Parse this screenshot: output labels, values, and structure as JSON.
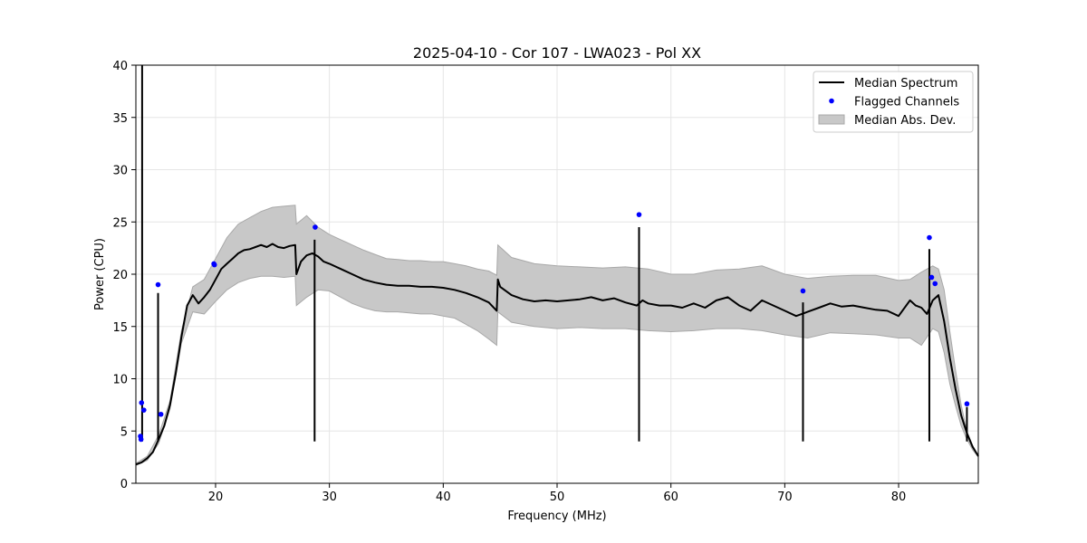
{
  "chart_data": {
    "type": "line",
    "title": "2025-04-10 - Cor 107 - LWA023 - Pol XX",
    "xlabel": "Frequency (MHz)",
    "ylabel": "Power (CPU)",
    "xlim": [
      13.0,
      87.0
    ],
    "ylim": [
      0,
      40
    ],
    "xticks": [
      20,
      30,
      40,
      50,
      60,
      70,
      80
    ],
    "yticks": [
      0,
      5,
      10,
      15,
      20,
      25,
      30,
      35,
      40
    ],
    "grid": true,
    "legend_position": "top-right",
    "legend": [
      {
        "label": "Median Spectrum",
        "kind": "line",
        "color": "#000000"
      },
      {
        "label": "Flagged Channels",
        "kind": "point",
        "color": "#0000ff"
      },
      {
        "label": "Median Abs. Dev.",
        "kind": "area",
        "color": "#c8c8c8"
      }
    ],
    "series": [
      {
        "name": "Median Spectrum",
        "color": "#000000",
        "x": [
          13.0,
          13.5,
          14.0,
          14.5,
          15.0,
          15.5,
          16.0,
          16.5,
          17.0,
          17.5,
          18.0,
          18.5,
          19.0,
          19.5,
          20.0,
          20.5,
          21.0,
          21.5,
          22.0,
          22.5,
          23.0,
          23.5,
          24.0,
          24.5,
          25.0,
          25.5,
          26.0,
          26.5,
          27.0,
          27.1,
          27.5,
          28.0,
          28.5,
          29.0,
          29.5,
          30.0,
          31.0,
          32.0,
          33.0,
          34.0,
          35.0,
          36.0,
          37.0,
          38.0,
          39.0,
          40.0,
          41.0,
          42.0,
          43.0,
          44.0,
          44.7,
          44.8,
          45.0,
          46.0,
          47.0,
          48.0,
          49.0,
          50.0,
          51.0,
          52.0,
          53.0,
          54.0,
          55.0,
          56.0,
          57.0,
          57.5,
          58.0,
          59.0,
          60.0,
          61.0,
          62.0,
          63.0,
          64.0,
          65.0,
          66.0,
          67.0,
          68.0,
          69.0,
          70.0,
          71.0,
          72.0,
          73.0,
          74.0,
          75.0,
          76.0,
          77.0,
          78.0,
          79.0,
          80.0,
          81.0,
          81.5,
          82.0,
          82.5,
          83.0,
          83.5,
          84.0,
          84.5,
          85.0,
          85.5,
          86.0,
          86.5,
          87.0
        ],
        "y": [
          1.8,
          2.0,
          2.4,
          3.0,
          4.2,
          5.5,
          7.5,
          10.5,
          14.0,
          17.0,
          18.0,
          17.2,
          17.8,
          18.5,
          19.5,
          20.5,
          21.0,
          21.5,
          22.0,
          22.3,
          22.4,
          22.6,
          22.8,
          22.6,
          22.9,
          22.6,
          22.5,
          22.7,
          22.8,
          20.0,
          21.2,
          21.8,
          22.0,
          21.7,
          21.2,
          21.0,
          20.5,
          20.0,
          19.5,
          19.2,
          19.0,
          18.9,
          18.9,
          18.8,
          18.8,
          18.7,
          18.5,
          18.2,
          17.8,
          17.3,
          16.5,
          19.5,
          18.8,
          18.0,
          17.6,
          17.4,
          17.5,
          17.4,
          17.5,
          17.6,
          17.8,
          17.5,
          17.7,
          17.3,
          17.0,
          17.5,
          17.2,
          17.0,
          17.0,
          16.8,
          17.2,
          16.8,
          17.5,
          17.8,
          17.0,
          16.5,
          17.5,
          17.0,
          16.5,
          16.0,
          16.4,
          16.8,
          17.2,
          16.9,
          17.0,
          16.8,
          16.6,
          16.5,
          16.0,
          17.5,
          17.0,
          16.8,
          16.2,
          17.5,
          18.0,
          15.5,
          12.0,
          9.0,
          6.5,
          4.8,
          3.5,
          2.6
        ]
      },
      {
        "name": "Flagged Channels",
        "color": "#0000ff",
        "x": [
          13.4,
          13.45,
          13.5,
          13.7,
          14.95,
          15.2,
          19.85,
          19.9,
          28.75,
          57.2,
          71.6,
          82.7,
          82.9,
          83.2,
          86.0
        ],
        "y": [
          4.5,
          4.2,
          7.7,
          7.0,
          19.0,
          6.6,
          21.0,
          20.9,
          24.5,
          25.7,
          18.4,
          23.5,
          19.7,
          19.1,
          7.6
        ]
      }
    ],
    "spikes": [
      {
        "x": 13.55,
        "y": 40.0
      },
      {
        "x": 14.95,
        "y": 18.2
      },
      {
        "x": 28.7,
        "y": 23.3
      },
      {
        "x": 57.2,
        "y": 24.5
      },
      {
        "x": 71.6,
        "y": 17.3
      },
      {
        "x": 82.7,
        "y": 22.4
      },
      {
        "x": 86.0,
        "y": 7.3
      }
    ],
    "mad_band": {
      "name": "Median Abs. Dev.",
      "color": "#c8c8c8",
      "x": [
        13.0,
        14.0,
        15.0,
        16.0,
        17.0,
        18.0,
        19.0,
        20.0,
        21.0,
        22.0,
        23.0,
        24.0,
        25.0,
        26.0,
        27.0,
        27.1,
        28.0,
        29.0,
        30.0,
        31.0,
        32.0,
        33.0,
        34.0,
        35.0,
        36.0,
        37.0,
        38.0,
        39.0,
        40.0,
        41.0,
        42.0,
        43.0,
        44.0,
        44.7,
        44.8,
        46.0,
        48.0,
        50.0,
        52.0,
        54.0,
        56.0,
        58.0,
        60.0,
        62.0,
        64.0,
        66.0,
        68.0,
        70.0,
        72.0,
        74.0,
        76.0,
        78.0,
        80.0,
        81.0,
        82.0,
        83.0,
        83.5,
        84.0,
        84.5,
        85.0,
        85.5,
        86.0,
        86.5,
        87.0
      ],
      "upper": [
        1.9,
        2.6,
        4.6,
        7.9,
        14.6,
        18.8,
        19.5,
        21.5,
        23.5,
        24.8,
        25.4,
        26.0,
        26.4,
        26.5,
        26.6,
        24.8,
        25.6,
        24.5,
        23.8,
        23.3,
        22.8,
        22.3,
        21.9,
        21.5,
        21.4,
        21.3,
        21.3,
        21.2,
        21.2,
        21.0,
        20.8,
        20.5,
        20.3,
        19.9,
        22.8,
        21.6,
        21.0,
        20.8,
        20.7,
        20.6,
        20.7,
        20.5,
        20.0,
        20.0,
        20.4,
        20.5,
        20.8,
        20.0,
        19.6,
        19.8,
        19.9,
        19.9,
        19.4,
        19.5,
        20.2,
        20.8,
        20.5,
        18.5,
        14.5,
        10.8,
        7.5,
        5.0,
        3.6,
        2.6
      ],
      "lower": [
        1.7,
        2.2,
        3.8,
        7.1,
        13.4,
        16.4,
        16.2,
        17.4,
        18.5,
        19.2,
        19.6,
        19.8,
        19.8,
        19.7,
        19.8,
        17.0,
        17.8,
        18.5,
        18.4,
        17.8,
        17.2,
        16.8,
        16.5,
        16.4,
        16.4,
        16.3,
        16.2,
        16.2,
        16.0,
        15.8,
        15.2,
        14.6,
        13.8,
        13.2,
        16.4,
        15.4,
        15.0,
        14.8,
        14.9,
        14.8,
        14.8,
        14.6,
        14.5,
        14.6,
        14.8,
        14.8,
        14.6,
        14.2,
        13.9,
        14.4,
        14.3,
        14.2,
        13.9,
        13.9,
        13.2,
        14.8,
        14.5,
        12.5,
        9.5,
        7.4,
        5.5,
        4.2,
        3.2,
        2.5
      ]
    }
  }
}
